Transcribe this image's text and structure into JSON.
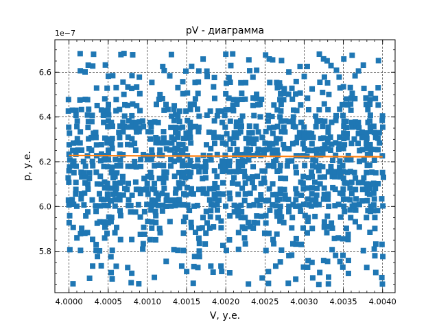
{
  "chart_data": {
    "type": "scatter",
    "title": "pV - диаграмма",
    "xlabel": "V, у.е.",
    "ylabel": "p, у.е.",
    "y_offset_label": "1e−7",
    "y_scale": 1e-07,
    "xlim": [
      3.99982,
      4.00416
    ],
    "ylim": [
      5.615,
      6.745
    ],
    "x_ticks": [
      4.0,
      4.0005,
      4.001,
      4.0015,
      4.002,
      4.0025,
      4.003,
      4.0035,
      4.004
    ],
    "x_tick_labels": [
      "4.0000",
      "4.0005",
      "4.0010",
      "4.0015",
      "4.0020",
      "4.0025",
      "4.0030",
      "4.0035",
      "4.0040"
    ],
    "y_ticks": [
      5.8,
      6.0,
      6.2,
      6.4,
      6.6
    ],
    "y_tick_labels": [
      "5.8",
      "6.0",
      "6.2",
      "6.4",
      "6.6"
    ],
    "grid": true,
    "grid_style": "dashed",
    "series": [
      {
        "kind": "scatter",
        "marker": "square",
        "color": "#1f77b4",
        "x_range": [
          4.0,
          4.004
        ],
        "y_range": [
          5.65,
          6.7
        ],
        "points_note_values": []
      },
      {
        "kind": "line",
        "color": "#ff7f0e",
        "x": [
          4.0,
          4.004
        ],
        "y": [
          6.228,
          6.222
        ]
      }
    ]
  }
}
